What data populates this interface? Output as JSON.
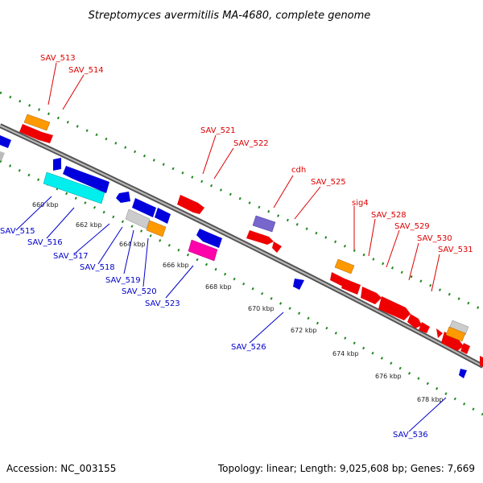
{
  "title": "Streptomyces avermitilis MA-4680, complete genome",
  "footer": {
    "accession": "Accession: NC_003155",
    "summary": "Topology: linear; Length: 9,025,608 bp; Genes: 7,669"
  },
  "colors": {
    "forward_label": "#dd0000",
    "reverse_label": "#0000cc",
    "backbone": "#888888",
    "tick_track": "#228822"
  },
  "kbp_ticks": [
    "660 kbp",
    "662 kbp",
    "664 kbp",
    "666 kbp",
    "668 kbp",
    "670 kbp",
    "672 kbp",
    "674 kbp",
    "676 kbp",
    "678 kbp"
  ],
  "forward_genes": [
    "SAV_513",
    "SAV_514",
    "SAV_521",
    "SAV_522",
    "cdh",
    "SAV_525",
    "sig4",
    "SAV_528",
    "SAV_529",
    "SAV_530",
    "SAV_531"
  ],
  "reverse_genes": [
    "SAV_515",
    "SAV_516",
    "SAV_517",
    "SAV_518",
    "SAV_519",
    "SAV_520",
    "SAV_523",
    "SAV_526",
    "SAV_536"
  ]
}
